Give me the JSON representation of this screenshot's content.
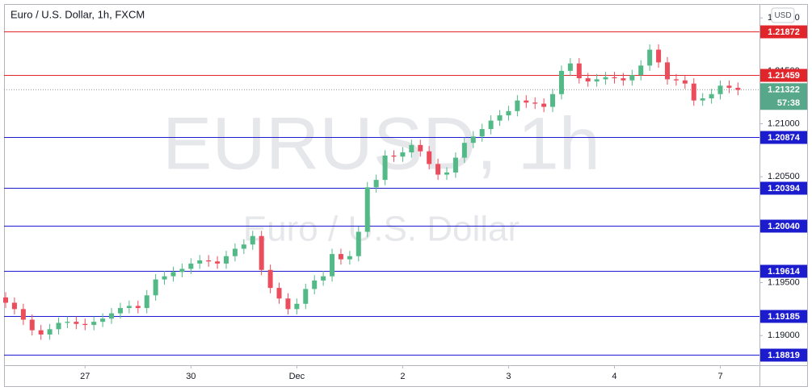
{
  "chart_data": {
    "type": "candlestick",
    "title": "Euro / U.S. Dollar, 1h, FXCM",
    "watermark": "EURUSD, 1h",
    "watermark_subtitle": "Euro / U.S. Dollar",
    "currency": "USD",
    "countdown": "57:38",
    "last_price": 1.21322,
    "up_color": "#53b987",
    "down_color": "#eb4d5c",
    "ylim": [
      1.1872,
      1.22131
    ],
    "yticks": [
      {
        "value": 1.19,
        "label": "1.19000"
      },
      {
        "value": 1.195,
        "label": "1.19500"
      },
      {
        "value": 1.205,
        "label": "1.20500"
      },
      {
        "value": 1.21,
        "label": "1.21000"
      },
      {
        "value": 1.215,
        "label": "1.21500"
      },
      {
        "value": 1.22,
        "label": "1.22000"
      }
    ],
    "levels": [
      {
        "value": 1.21872,
        "color": "#e0252b"
      },
      {
        "value": 1.21459,
        "color": "#e0252b"
      },
      {
        "value": 1.20874,
        "color": "#1c1ccf"
      },
      {
        "value": 1.20394,
        "color": "#1c1ccf"
      },
      {
        "value": 1.2004,
        "label": "1.20040",
        "color": "#1c1ccf"
      },
      {
        "value": 1.19614,
        "color": "#1c1ccf"
      },
      {
        "value": 1.19185,
        "color": "#1c1ccf"
      },
      {
        "value": 1.18819,
        "color": "#1c1ccf"
      }
    ],
    "categories": [
      null,
      null,
      null,
      null,
      null,
      null,
      null,
      null,
      null,
      "27",
      null,
      null,
      null,
      null,
      null,
      null,
      null,
      null,
      null,
      null,
      null,
      "30",
      null,
      null,
      null,
      null,
      null,
      null,
      null,
      null,
      null,
      null,
      null,
      "Dec",
      null,
      null,
      null,
      null,
      null,
      null,
      null,
      null,
      null,
      null,
      null,
      "2",
      null,
      null,
      null,
      null,
      null,
      null,
      null,
      null,
      null,
      null,
      null,
      "3",
      null,
      null,
      null,
      null,
      null,
      null,
      null,
      null,
      null,
      null,
      null,
      "4",
      null,
      null,
      null,
      null,
      null,
      null,
      null,
      null,
      null,
      null,
      null,
      "7",
      null,
      null
    ],
    "open": [
      1.1936,
      1.1931,
      1.1925,
      1.1915,
      1.1905,
      1.1901,
      1.1906,
      1.1912,
      1.1913,
      1.1911,
      1.191,
      1.1913,
      1.1916,
      1.1921,
      1.1926,
      1.1928,
      1.1926,
      1.1938,
      1.1953,
      1.1956,
      1.196,
      1.1963,
      1.1968,
      1.1971,
      1.197,
      1.1968,
      1.1975,
      1.1982,
      1.1986,
      1.1994,
      1.1962,
      1.1945,
      1.1935,
      1.1925,
      1.193,
      1.1944,
      1.1952,
      1.1956,
      1.1977,
      1.1972,
      1.1975,
      1.1998,
      1.204,
      1.2047,
      1.207,
      1.2069,
      1.2073,
      1.208,
      1.2074,
      1.2062,
      1.2052,
      1.2054,
      1.2068,
      1.2082,
      1.2088,
      1.2095,
      1.2103,
      1.2108,
      1.2112,
      1.2122,
      1.212,
      1.2119,
      1.2116,
      1.2128,
      1.215,
      1.2157,
      1.2143,
      1.214,
      1.2142,
      1.2144,
      1.2143,
      1.2141,
      1.2146,
      1.2155,
      1.217,
      1.2158,
      1.2142,
      1.2141,
      1.2138,
      1.2122,
      1.2124,
      1.2128,
      1.2136,
      1.2134
    ],
    "high": [
      1.1941,
      1.1936,
      1.193,
      1.192,
      1.191,
      1.1911,
      1.1917,
      1.1918,
      1.1918,
      1.1916,
      1.1918,
      1.1921,
      1.1926,
      1.1931,
      1.1933,
      1.1933,
      1.1943,
      1.1958,
      1.1961,
      1.1965,
      1.1968,
      1.1973,
      1.1976,
      1.1976,
      1.1975,
      1.198,
      1.1987,
      1.1991,
      1.1999,
      1.1999,
      1.1967,
      1.195,
      1.194,
      1.1935,
      1.1949,
      1.1957,
      1.1961,
      1.1982,
      1.1982,
      1.198,
      1.2003,
      1.2045,
      1.2052,
      1.2075,
      1.2075,
      1.2078,
      1.2085,
      1.2085,
      1.2079,
      1.2067,
      1.2059,
      1.2073,
      1.2087,
      1.2093,
      1.21,
      1.2108,
      1.2113,
      1.2117,
      1.2127,
      1.2127,
      1.2125,
      1.2124,
      1.2133,
      1.2155,
      1.2162,
      1.2162,
      1.2148,
      1.2147,
      1.2149,
      1.2149,
      1.2148,
      1.2151,
      1.216,
      1.2175,
      1.2175,
      1.2163,
      1.2147,
      1.2146,
      1.2143,
      1.2129,
      1.2133,
      1.2141,
      1.2141,
      1.2139
    ],
    "low": [
      1.1926,
      1.192,
      1.191,
      1.19,
      1.1896,
      1.1896,
      1.1901,
      1.1907,
      1.1906,
      1.1905,
      1.1905,
      1.1908,
      1.1911,
      1.1916,
      1.1921,
      1.1921,
      1.1921,
      1.1933,
      1.1948,
      1.1951,
      1.1955,
      1.1958,
      1.1963,
      1.1965,
      1.1963,
      1.1963,
      1.197,
      1.1977,
      1.1981,
      1.1957,
      1.194,
      1.193,
      1.192,
      1.192,
      1.1925,
      1.1939,
      1.1947,
      1.1951,
      1.1967,
      1.1967,
      1.197,
      1.1993,
      1.2035,
      1.2042,
      1.2064,
      1.2064,
      1.2068,
      1.2069,
      1.2057,
      1.2047,
      1.2047,
      1.2049,
      1.2063,
      1.2077,
      1.2083,
      1.209,
      1.2098,
      1.2103,
      1.2107,
      1.2115,
      1.2114,
      1.2111,
      1.2111,
      1.2123,
      1.2145,
      1.2138,
      1.2135,
      1.2135,
      1.2137,
      1.2138,
      1.2136,
      1.2136,
      1.2141,
      1.215,
      1.2153,
      1.2137,
      1.2136,
      1.2133,
      1.2117,
      1.2117,
      1.2119,
      1.2123,
      1.2129,
      1.2127
    ],
    "close": [
      1.1931,
      1.1925,
      1.1915,
      1.1905,
      1.1901,
      1.1906,
      1.1912,
      1.1913,
      1.1911,
      1.191,
      1.1913,
      1.1916,
      1.1921,
      1.1926,
      1.1928,
      1.1926,
      1.1938,
      1.1953,
      1.1956,
      1.196,
      1.1963,
      1.1968,
      1.1971,
      1.197,
      1.1968,
      1.1975,
      1.1982,
      1.1986,
      1.1994,
      1.1962,
      1.1945,
      1.1935,
      1.1925,
      1.193,
      1.1944,
      1.1952,
      1.1956,
      1.1977,
      1.1972,
      1.1975,
      1.1998,
      1.204,
      1.2047,
      1.207,
      1.2069,
      1.2073,
      1.208,
      1.2074,
      1.2062,
      1.2052,
      1.2054,
      1.2068,
      1.2082,
      1.2088,
      1.2095,
      1.2103,
      1.2108,
      1.2112,
      1.2122,
      1.212,
      1.2119,
      1.2116,
      1.2128,
      1.215,
      1.2157,
      1.2143,
      1.214,
      1.2142,
      1.2144,
      1.2143,
      1.2141,
      1.2146,
      1.2155,
      1.217,
      1.2158,
      1.2142,
      1.2141,
      1.2138,
      1.2122,
      1.2124,
      1.2128,
      1.2136,
      1.2134,
      1.2132
    ]
  }
}
